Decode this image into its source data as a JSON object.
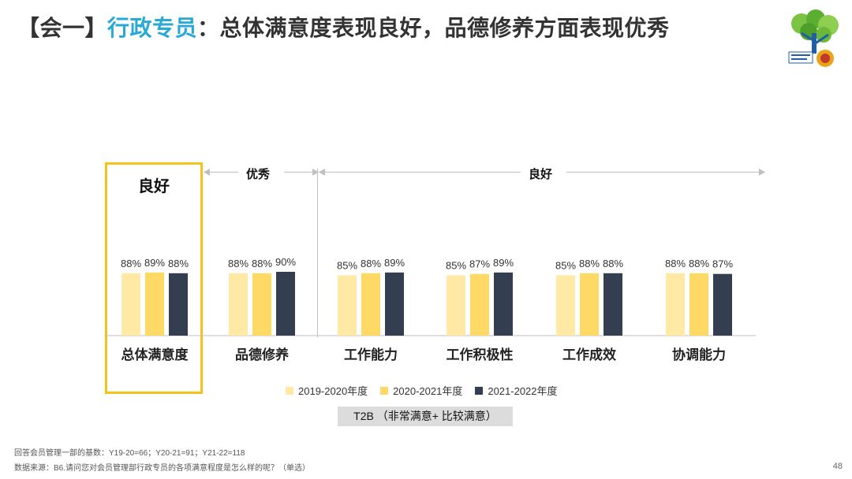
{
  "header": {
    "bracket_prefix": "【会一】",
    "accent_text": "行政专员",
    "title_rest": "：总体满意度表现良好，品德修养方面表现优秀"
  },
  "annotations": {
    "highlight_label": "良好",
    "band_excellent": "优秀",
    "band_good": "良好"
  },
  "colors": {
    "y1": "#ffe9a5",
    "y2": "#ffd966",
    "y3": "#333f50",
    "highlight": "#f5c21b",
    "accent": "#29a9d6"
  },
  "chart_data": {
    "type": "bar",
    "categories": [
      "总体满意度",
      "品德修养",
      "工作能力",
      "工作积极性",
      "工作成效",
      "协调能力"
    ],
    "series": [
      {
        "name": "2019-2020年度",
        "values": [
          88,
          88,
          85,
          85,
          85,
          88
        ]
      },
      {
        "name": "2020-2021年度",
        "values": [
          89,
          88,
          88,
          87,
          88,
          88
        ]
      },
      {
        "name": "2021-2022年度",
        "values": [
          88,
          90,
          89,
          89,
          88,
          87
        ]
      }
    ],
    "value_suffix": "%",
    "ylim": [
      0,
      100
    ],
    "grid": false
  },
  "t2b_label": "T2B （非常满意+ 比较满意）",
  "footnotes": {
    "base": "回答会员管理一部的基数：Y19-20=66；Y20-21=91；Y21-22=118",
    "source": "数据来源：B6.请问您对会员管理部行政专员的各项满意程度是怎么样的呢？（单选）"
  },
  "page_number": "48"
}
